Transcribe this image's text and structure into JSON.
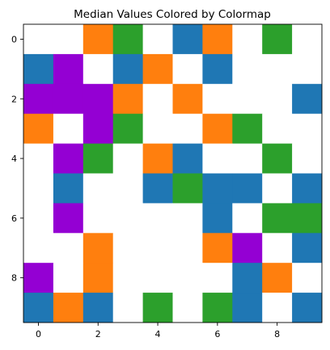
{
  "chart_data": {
    "type": "heatmap",
    "title": "Median Values Colored by Colormap",
    "xlabel": "",
    "ylabel": "",
    "x_ticks": [
      0,
      2,
      4,
      6,
      8
    ],
    "y_ticks": [
      0,
      2,
      4,
      6,
      8
    ],
    "x_range": [
      -0.5,
      9.5
    ],
    "y_range": [
      -0.5,
      9.5
    ],
    "y_axis_inverted": true,
    "grid": false,
    "legend": "none",
    "palette": {
      "W": "#ffffff",
      "B": "#1f77b4",
      "O": "#ff7f0e",
      "G": "#2ca02c",
      "P": "#9400d3"
    },
    "cells": [
      [
        "W",
        "W",
        "O",
        "G",
        "W",
        "B",
        "O",
        "W",
        "G",
        "W"
      ],
      [
        "B",
        "P",
        "W",
        "B",
        "O",
        "W",
        "B",
        "W",
        "W",
        "W"
      ],
      [
        "P",
        "P",
        "P",
        "O",
        "W",
        "O",
        "W",
        "W",
        "W",
        "B"
      ],
      [
        "O",
        "W",
        "P",
        "G",
        "W",
        "W",
        "O",
        "G",
        "W",
        "W"
      ],
      [
        "W",
        "P",
        "G",
        "W",
        "O",
        "B",
        "W",
        "W",
        "G",
        "W"
      ],
      [
        "W",
        "B",
        "W",
        "W",
        "B",
        "G",
        "B",
        "B",
        "W",
        "B"
      ],
      [
        "W",
        "P",
        "W",
        "W",
        "W",
        "W",
        "B",
        "W",
        "G",
        "G"
      ],
      [
        "W",
        "W",
        "O",
        "W",
        "W",
        "W",
        "O",
        "P",
        "W",
        "B"
      ],
      [
        "P",
        "W",
        "O",
        "W",
        "W",
        "W",
        "W",
        "B",
        "O",
        "W"
      ],
      [
        "B",
        "O",
        "B",
        "W",
        "G",
        "W",
        "G",
        "B",
        "W",
        "B"
      ]
    ]
  }
}
